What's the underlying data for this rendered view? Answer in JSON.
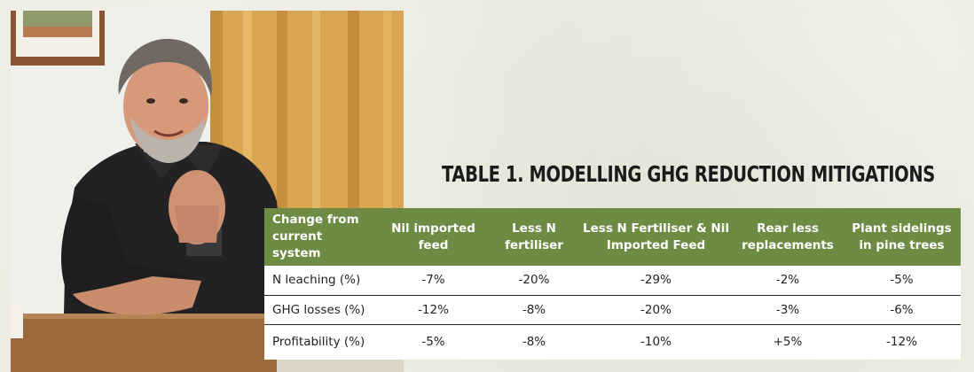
{
  "table": {
    "title": "TABLE 1. MODELLING GHG REDUCTION MITIGATIONS",
    "headers": [
      "Change from current system",
      "Nil imported feed",
      "Less N fertiliser",
      "Less N Fertiliser & Nil Imported Feed",
      "Rear less replacements",
      "Plant sidelings in pine trees"
    ],
    "rows": [
      {
        "label": "N leaching (%)",
        "values": [
          "-7%",
          "-20%",
          "-29%",
          "-2%",
          "-5%"
        ]
      },
      {
        "label": "GHG losses (%)",
        "values": [
          "-12%",
          "-8%",
          "-20%",
          "-3%",
          "-6%"
        ]
      },
      {
        "label": "Profitability (%)",
        "values": [
          "-5%",
          "-8%",
          "-10%",
          "+5%",
          "-12%"
        ]
      }
    ]
  },
  "colors": {
    "header_bg": "#6e8b44",
    "header_text": "#ffffff",
    "page_bg": "#ebebe0"
  }
}
